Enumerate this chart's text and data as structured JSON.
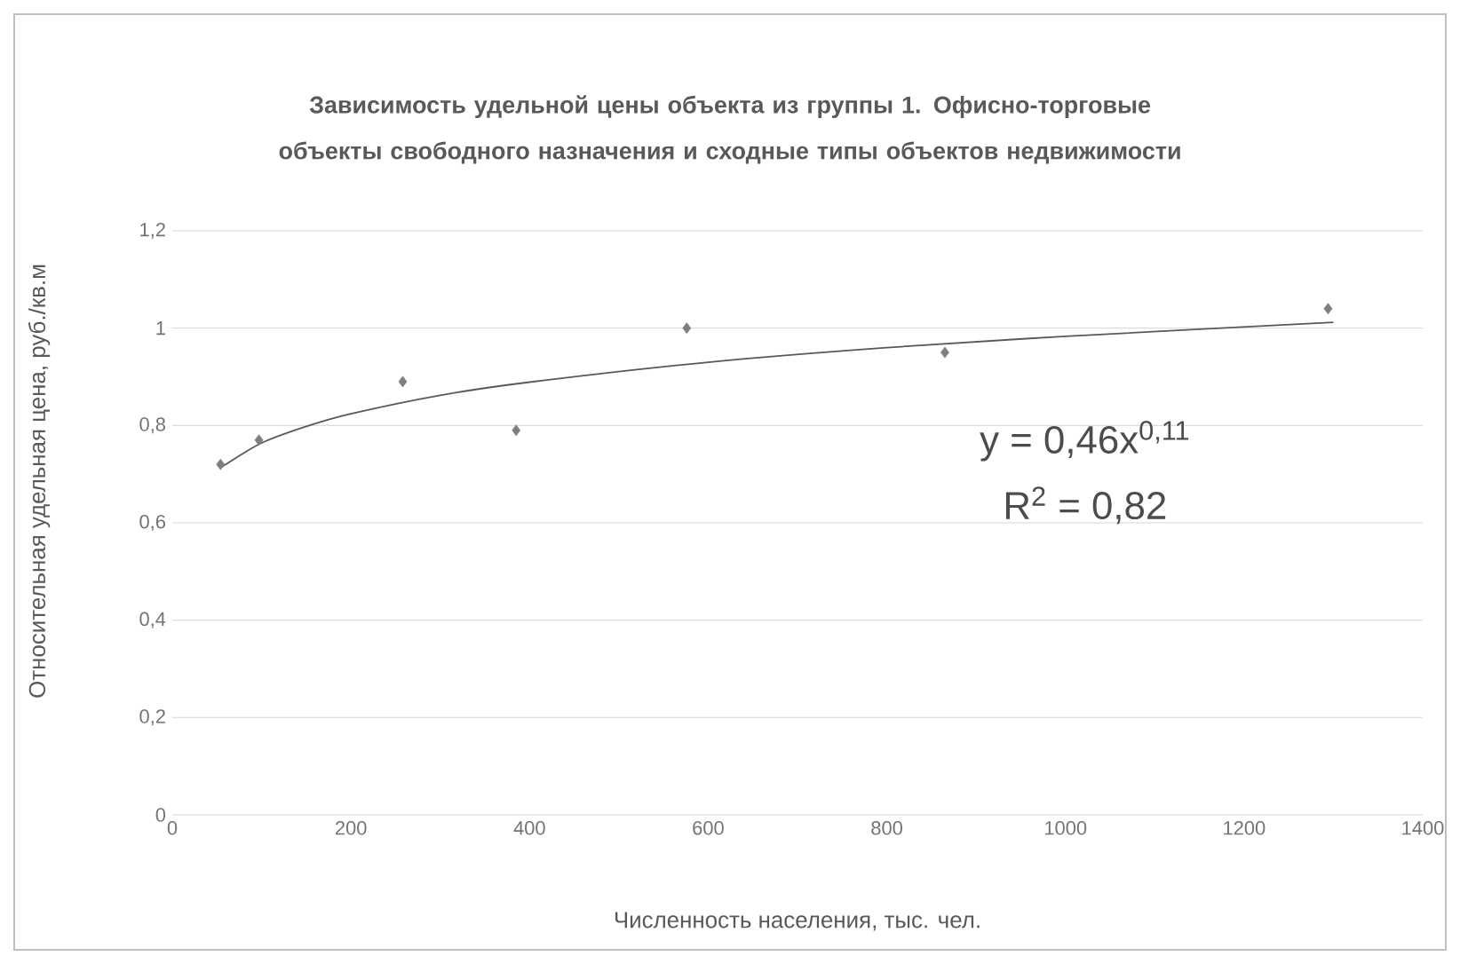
{
  "chart_data": {
    "type": "scatter",
    "title": "Зависимость удельной цены объекта из группы 1. Офисно-торговые объекты свободного назначения и сходные типы объектов недвижимости",
    "xlabel": "Численность населения, тыс. чел.",
    "ylabel": "Относительная удельная цена, руб./кв.м",
    "series": [
      {
        "color": "#7f7f7f",
        "marker": "diamond",
        "x": [
          54,
          97,
          258,
          385,
          576,
          865,
          1294
        ],
        "values": [
          0.72,
          0.77,
          0.89,
          0.79,
          1.0,
          0.95,
          1.04
        ]
      },
      {
        "type": "line",
        "color": "#595959",
        "line_style": "solid",
        "x": [
          54,
          100,
          150,
          200,
          300,
          400,
          600,
          800,
          1000,
          1300
        ],
        "values": [
          0.713,
          0.764,
          0.798,
          0.824,
          0.862,
          0.889,
          0.93,
          0.96,
          0.983,
          1.012
        ]
      }
    ],
    "annotations": [
      "y = 0,46x$^{0,11}$",
      "R$^{2}$ = 0,82"
    ],
    "xlim": [
      0,
      1400
    ],
    "xticks": [
      0,
      200,
      400,
      600,
      800,
      1000,
      1200,
      1400
    ],
    "ylim": [
      0,
      1.2
    ],
    "yticks": [
      {
        "value": 0,
        "label": "0"
      },
      {
        "value": 0.2,
        "label": "0,2"
      },
      {
        "value": 0.4,
        "label": "0,4"
      },
      {
        "value": 0.6,
        "label": "0,6"
      },
      {
        "value": 0.8,
        "label": "0,8"
      },
      {
        "value": 1,
        "label": "1"
      },
      {
        "value": 1.2,
        "label": "1,2"
      }
    ],
    "grid": "y"
  }
}
